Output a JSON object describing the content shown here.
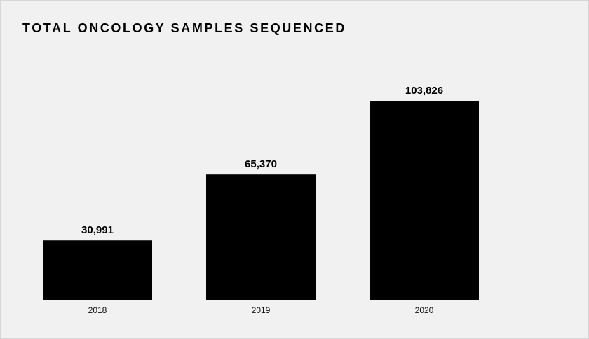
{
  "chart_data": {
    "type": "bar",
    "title": "TOTAL ONCOLOGY SAMPLES SEQUENCED",
    "categories": [
      "2018",
      "2019",
      "2020"
    ],
    "values": [
      30991,
      65370,
      103826
    ],
    "value_labels": [
      "30,991",
      "65,370",
      "103,826"
    ],
    "xlabel": "",
    "ylabel": "",
    "ylim": [
      0,
      103826
    ],
    "grid": false,
    "legend": "none",
    "bar_color": "#000000",
    "background_color": "#f1f1f1"
  }
}
